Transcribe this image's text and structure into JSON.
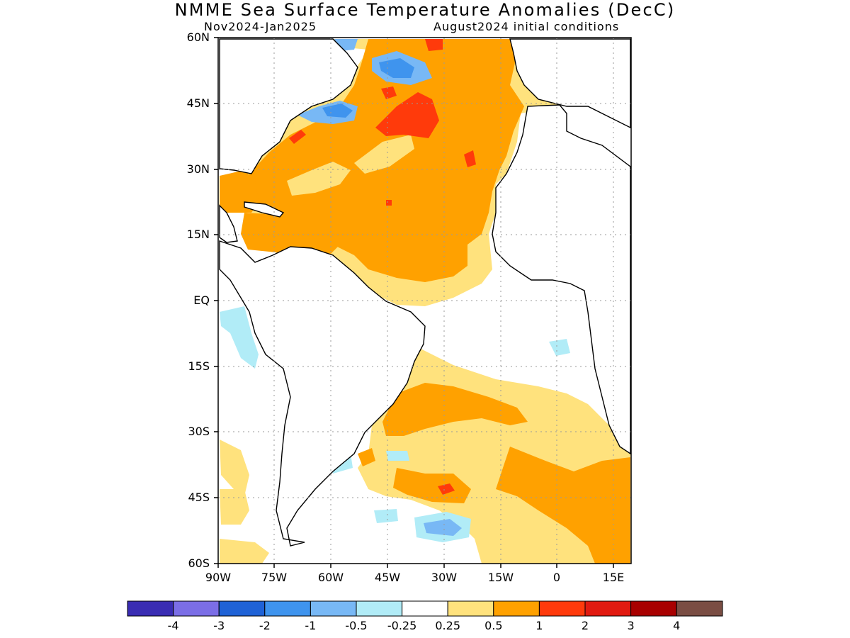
{
  "title": "NMME Sea Surface Temperature Anomalies (DecC)",
  "subtitle_left": "Nov2024-Jan2025",
  "subtitle_right": "August2024 initial conditions",
  "map": {
    "lat_labels": [
      "60N",
      "45N",
      "30N",
      "15N",
      "EQ",
      "15S",
      "30S",
      "45S",
      "60S"
    ],
    "lon_labels": [
      "90W",
      "75W",
      "60W",
      "45W",
      "30W",
      "15W",
      "0",
      "15E"
    ],
    "lat_range": [
      -60,
      60
    ],
    "lon_range": [
      -90,
      20
    ],
    "gridlines": "dotted"
  },
  "colorbar": {
    "labels": [
      "-4",
      "-3",
      "-2",
      "-1",
      "-0.5",
      "-0.25",
      "0.25",
      "0.5",
      "1",
      "2",
      "3",
      "4"
    ],
    "colors": [
      "#3a2db3",
      "#7b6ee6",
      "#1f62d6",
      "#3f94ee",
      "#78b8f5",
      "#b1ecf7",
      "#ffffff",
      "#ffe27d",
      "#ffa100",
      "#ff3a0b",
      "#e11a10",
      "#a80000",
      "#7a4d43"
    ]
  }
}
